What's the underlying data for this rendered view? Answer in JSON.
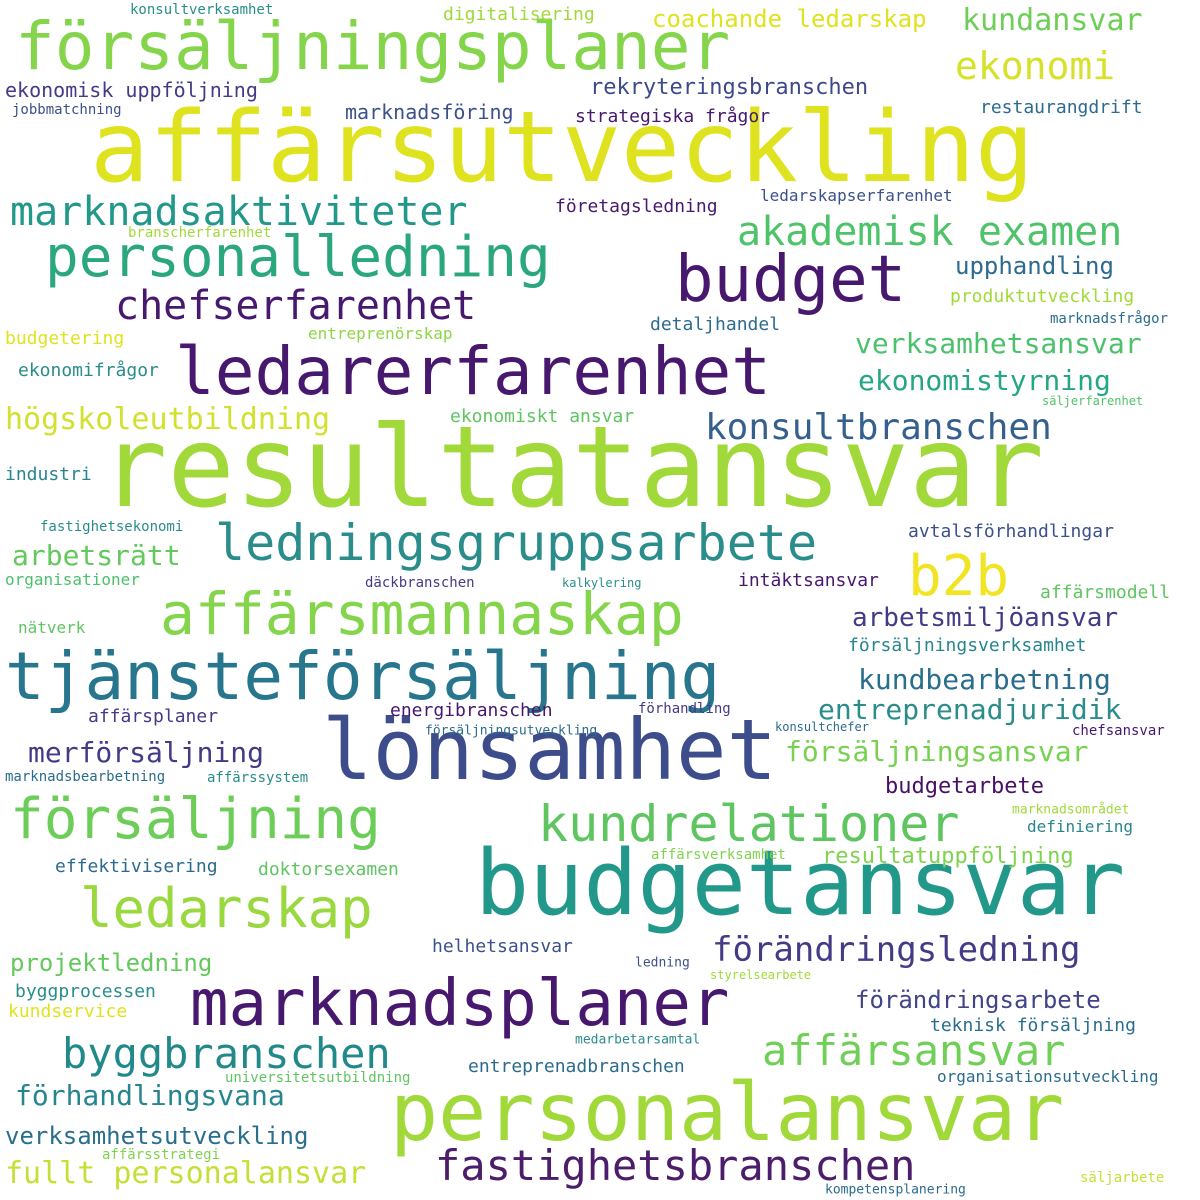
{
  "words": [
    {
      "text": "resultatansvar",
      "color": "#a2d93a"
    },
    {
      "text": "affärsutveckling",
      "color": "#dfe31f"
    },
    {
      "text": "budgetansvar",
      "color": "#22988b"
    },
    {
      "text": "lönsamhet",
      "color": "#3d4c8a"
    },
    {
      "text": "personalansvar",
      "color": "#a2d93a"
    },
    {
      "text": "försäljningsplaner",
      "color": "#84d54b"
    },
    {
      "text": "ledarerfarenhet",
      "color": "#47186e"
    },
    {
      "text": "marknadsplaner",
      "color": "#47186e"
    },
    {
      "text": "tjänsteförsäljning",
      "color": "#28768e"
    },
    {
      "text": "affärsmannaskap",
      "color": "#84d54b"
    },
    {
      "text": "personalledning",
      "color": "#2ba77f"
    },
    {
      "text": "budget",
      "color": "#47186e"
    },
    {
      "text": "försäljning",
      "color": "#6cce58"
    },
    {
      "text": "ledningsgruppsarbete",
      "color": "#2a8d8c"
    },
    {
      "text": "b2b",
      "color": "#f0e423"
    },
    {
      "text": "ledarskap",
      "color": "#99d83e"
    },
    {
      "text": "kundrelationer",
      "color": "#5ec561"
    },
    {
      "text": "fastighetsbranschen",
      "color": "#4b1d6b"
    },
    {
      "text": "byggbranschen",
      "color": "#22898b"
    },
    {
      "text": "affärsansvar",
      "color": "#6fcf56"
    },
    {
      "text": "marknadsaktiviteter",
      "color": "#22988b"
    },
    {
      "text": "akademisk examen",
      "color": "#4ec36a"
    },
    {
      "text": "chefserfarenhet",
      "color": "#47186e"
    },
    {
      "text": "ekonomi",
      "color": "#d8e12a"
    },
    {
      "text": "konsultbranschen",
      "color": "#355f8d"
    },
    {
      "text": "förändringsledning",
      "color": "#433b86"
    },
    {
      "text": "kundansvar",
      "color": "#6ece58"
    },
    {
      "text": "coachande ledarskap",
      "color": "#dfe31f"
    },
    {
      "text": "högskoleutbildning",
      "color": "#d2e02e"
    },
    {
      "text": "ekonomistyrning",
      "color": "#26a686"
    },
    {
      "text": "verksamhetsansvar",
      "color": "#4bc16c"
    },
    {
      "text": "upphandling",
      "color": "#2c6b8e"
    },
    {
      "text": "kundbearbetning",
      "color": "#2a6e8e"
    },
    {
      "text": "entreprenadjuridik",
      "color": "#2a8d8c"
    },
    {
      "text": "försäljningsansvar",
      "color": "#79d152"
    },
    {
      "text": "arbetsmiljöansvar",
      "color": "#433b86"
    },
    {
      "text": "merförsäljning",
      "color": "#433b86"
    },
    {
      "text": "arbetsrätt",
      "color": "#64c95c"
    },
    {
      "text": "förhandlingsvana",
      "color": "#27858e"
    },
    {
      "text": "verksamhetsutveckling",
      "color": "#2a6e8e"
    },
    {
      "text": "fullt personalansvar",
      "color": "#c6df36"
    },
    {
      "text": "projektledning",
      "color": "#64c95c"
    },
    {
      "text": "förändringsarbete",
      "color": "#414487"
    },
    {
      "text": "resultatuppföljning",
      "color": "#80d34e"
    },
    {
      "text": "budgetarbete",
      "color": "#471063"
    },
    {
      "text": "rekryteringsbranschen",
      "color": "#3e4989"
    },
    {
      "text": "ekonomisk uppföljning",
      "color": "#433b86"
    },
    {
      "text": "marknadsföring",
      "color": "#3b518b"
    },
    {
      "text": "strategiska frågor",
      "color": "#47186e"
    },
    {
      "text": "digitalisering",
      "color": "#a0da39"
    },
    {
      "text": "företagsledning",
      "color": "#47186e"
    },
    {
      "text": "ledarskapserfarenhet",
      "color": "#3b518b"
    },
    {
      "text": "produktutveckling",
      "color": "#a0da39"
    },
    {
      "text": "detaljhandel",
      "color": "#2c6b8e"
    },
    {
      "text": "entreprenörskap",
      "color": "#8ed645"
    },
    {
      "text": "budgetering",
      "color": "#dfe31f"
    },
    {
      "text": "ekonomifrågor",
      "color": "#2a8d8c"
    },
    {
      "text": "ekonomiskt ansvar",
      "color": "#5ec561"
    },
    {
      "text": "avtalsförhandlingar",
      "color": "#3b518b"
    },
    {
      "text": "intäktsansvar",
      "color": "#47186e"
    },
    {
      "text": "affärsmodell",
      "color": "#5ec561"
    },
    {
      "text": "försäljningsverksamhet",
      "color": "#27858e"
    },
    {
      "text": "energibranschen",
      "color": "#47186e"
    },
    {
      "text": "affärsplaner",
      "color": "#433b86"
    },
    {
      "text": "teknisk försäljning",
      "color": "#2a6e8e"
    },
    {
      "text": "helhetsansvar",
      "color": "#3b518b"
    },
    {
      "text": "effektivisering",
      "color": "#2c6b8e"
    },
    {
      "text": "doktorsexamen",
      "color": "#5ec561"
    },
    {
      "text": "entreprenadbranschen",
      "color": "#2c6b8e"
    },
    {
      "text": "organisationsutveckling",
      "color": "#2c6b8e"
    },
    {
      "text": "definiering",
      "color": "#27858e"
    },
    {
      "text": "restaurangdrift",
      "color": "#2c6b8e"
    },
    {
      "text": "konsultverksamhet",
      "color": "#2a8d8c"
    },
    {
      "text": "jobbmatchning",
      "color": "#3b518b"
    },
    {
      "text": "branscherfarenhet",
      "color": "#a0da39"
    },
    {
      "text": "marknadsfrågor",
      "color": "#2a6e8e"
    },
    {
      "text": "säljerfarenhet",
      "color": "#4ec36a"
    },
    {
      "text": "industri",
      "color": "#27858e"
    },
    {
      "text": "fastighetsekonomi",
      "color": "#2a8d8c"
    },
    {
      "text": "organisationer",
      "color": "#4bc16c"
    },
    {
      "text": "däckbranschen",
      "color": "#433b86"
    },
    {
      "text": "kalkylering",
      "color": "#2a8d8c"
    },
    {
      "text": "nätverk",
      "color": "#5ec561"
    },
    {
      "text": "förhandling",
      "color": "#433b86"
    },
    {
      "text": "försäljningsutveckling",
      "color": "#2c6b8e"
    },
    {
      "text": "konsultchefer",
      "color": "#2c6b8e"
    },
    {
      "text": "chefsansvar",
      "color": "#47186e"
    },
    {
      "text": "marknadsbearbetning",
      "color": "#2c6b8e"
    },
    {
      "text": "affärssystem",
      "color": "#2a8d8c"
    },
    {
      "text": "marknadsområdet",
      "color": "#a0da39"
    },
    {
      "text": "affärsverksamhet",
      "color": "#80d34e"
    },
    {
      "text": "ledning",
      "color": "#3b518b"
    },
    {
      "text": "styrelsearbete",
      "color": "#a0da39"
    },
    {
      "text": "byggprocessen",
      "color": "#2a8d8c"
    },
    {
      "text": "kundservice",
      "color": "#dfe31f"
    },
    {
      "text": "medarbetarsamtal",
      "color": "#2a8d8c"
    },
    {
      "text": "universitetsutbildning",
      "color": "#5ec561"
    },
    {
      "text": "affärsstrategi",
      "color": "#80d34e"
    },
    {
      "text": "säljarbete",
      "color": "#c6df36"
    },
    {
      "text": "kompetensplanering",
      "color": "#2c6b8e"
    }
  ]
}
